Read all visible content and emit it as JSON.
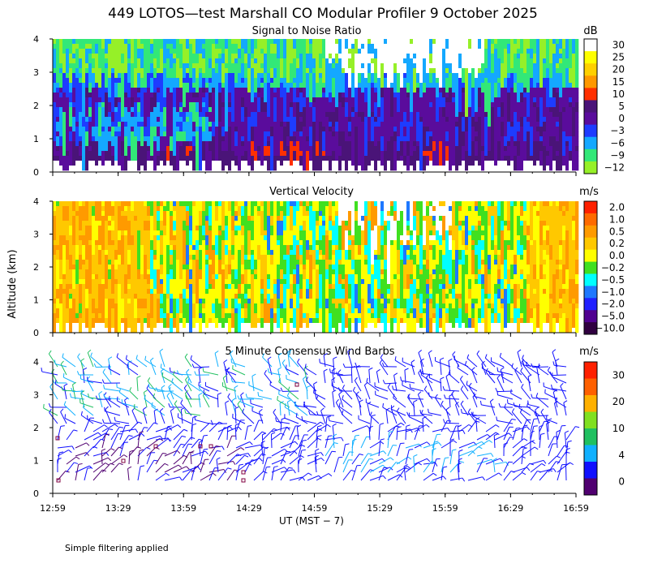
{
  "figure": {
    "title": "449 LOTOS—test Marshall CO Modular Profiler  9 October 2025",
    "ylabel": "Altitude (km)",
    "xlabel": "UT  (MST − 7)",
    "footnote": "Simple filtering applied"
  },
  "chart_data": [
    {
      "type": "heatmap",
      "title": "Signal to Noise Ratio",
      "ylim": [
        0,
        4
      ],
      "ytick_labels": [
        "0",
        "1",
        "2",
        "3",
        "4"
      ],
      "x_range": [
        "12:59",
        "16:59"
      ],
      "colorbar_unit": "dB",
      "colorbar_labels": [
        "30",
        "25",
        "20",
        "15",
        "10",
        "5",
        "0",
        "−3",
        "−6",
        "−9",
        "−12"
      ],
      "colorbar_colors": [
        "#ffffff",
        "#ffff00",
        "#ffd000",
        "#ff9800",
        "#ff3000",
        "#4a1478",
        "#5a0c9c",
        "#1e3cff",
        "#14a8ff",
        "#32e878",
        "#96f028"
      ],
      "grid": false
    },
    {
      "type": "heatmap",
      "title": "Vertical Velocity",
      "ylim": [
        0,
        4
      ],
      "ytick_labels": [
        "0",
        "1",
        "2",
        "3",
        "4"
      ],
      "x_range": [
        "12:59",
        "16:59"
      ],
      "colorbar_unit": "m/s",
      "colorbar_labels": [
        "2.0",
        "1.0",
        "0.5",
        "0.2",
        "0.0",
        "−0.2",
        "−0.5",
        "−1.0",
        "−2.0",
        "−5.0",
        "−10.0"
      ],
      "colorbar_colors": [
        "#ff2000",
        "#ff6a00",
        "#ff9a00",
        "#ffc800",
        "#ffff00",
        "#40e020",
        "#00ffff",
        "#1e78ff",
        "#2020ff",
        "#500090",
        "#300040"
      ],
      "grid": false
    },
    {
      "type": "scatter",
      "title": "5 Minute Consensus Wind Barbs",
      "ylim": [
        0,
        4
      ],
      "ytick_labels": [
        "0",
        "1",
        "2",
        "3",
        "4"
      ],
      "x_range": [
        "12:59",
        "16:59"
      ],
      "colorbar_unit": "m/s",
      "colorbar_labels": [
        "30",
        "20",
        "10",
        "4",
        "0"
      ],
      "colorbar_colors": [
        "#ff2000",
        "#ff6000",
        "#ffb000",
        "#80e020",
        "#20c060",
        "#10b0ff",
        "#1010ff",
        "#500070"
      ],
      "grid": false
    }
  ],
  "x_axis": {
    "tick_labels": [
      "12:59",
      "13:29",
      "13:59",
      "14:29",
      "14:59",
      "15:29",
      "15:59",
      "16:29",
      "16:59"
    ]
  }
}
